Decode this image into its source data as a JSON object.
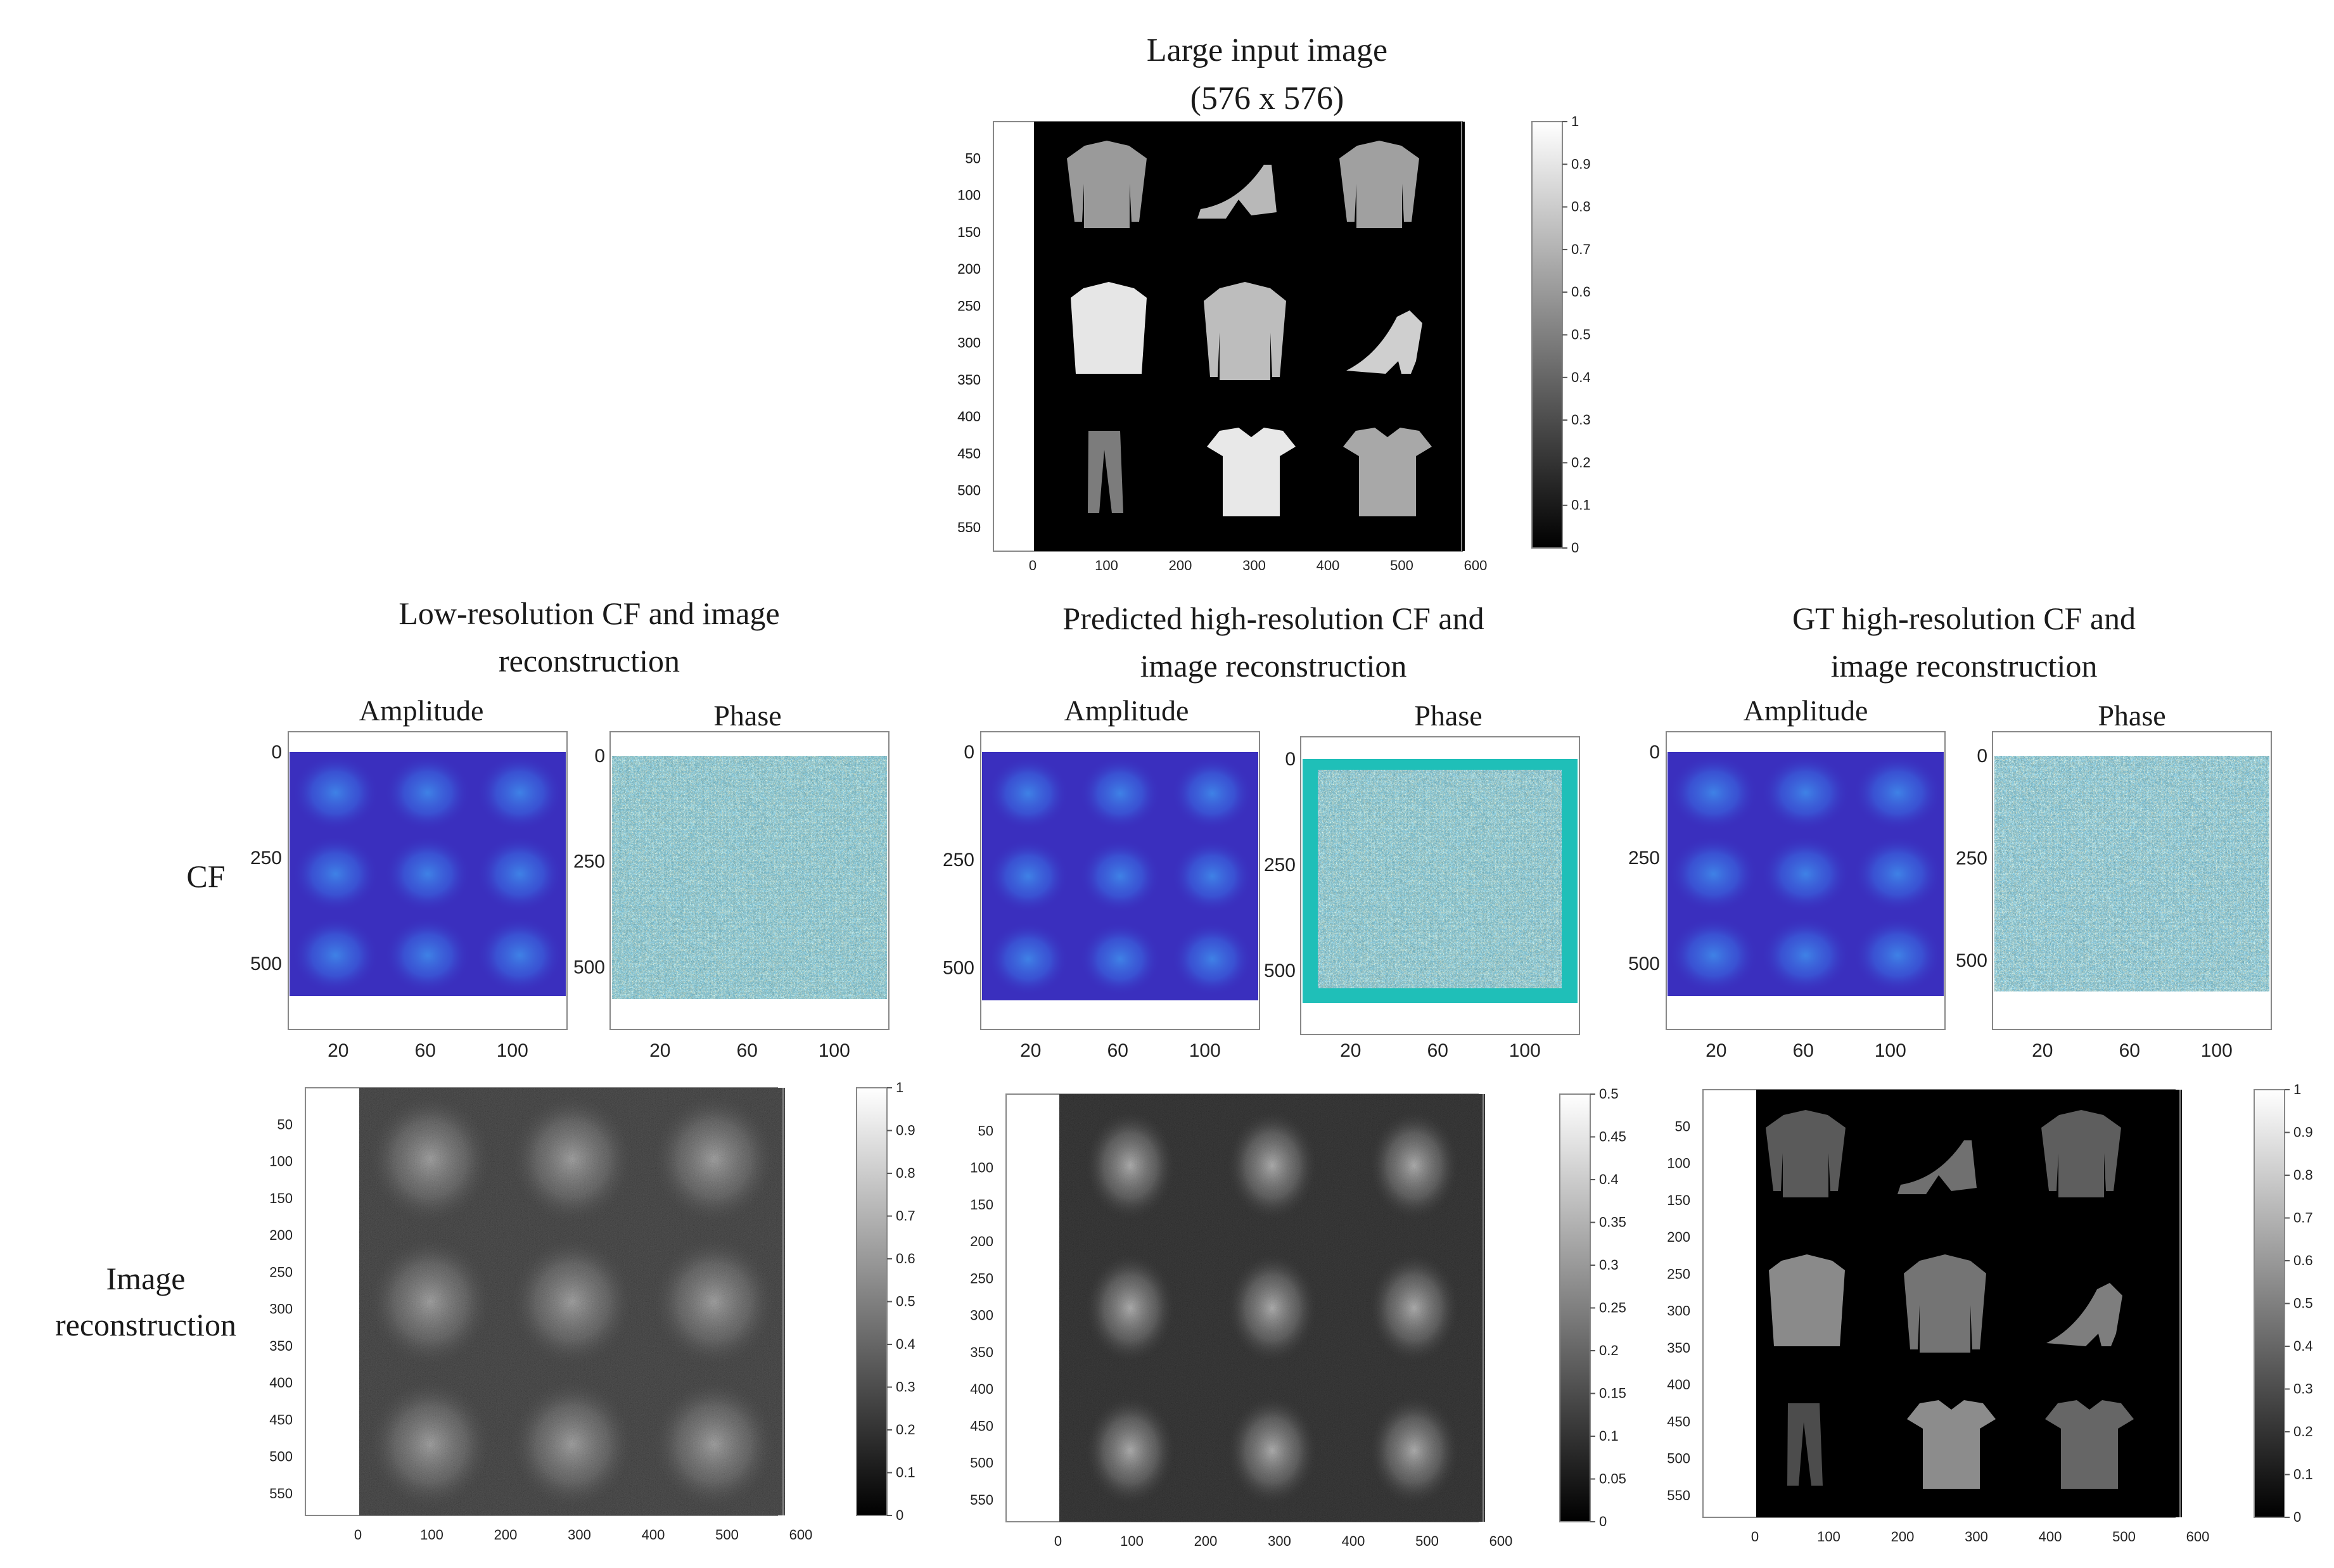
{
  "top_title": {
    "line1": "Large input image",
    "line2": "(576 x 576)"
  },
  "columns": [
    {
      "title_line1": "Low-resolution  CF and image",
      "title_line2": "reconstruction"
    },
    {
      "title_line1": "Predicted high-resolution  CF and",
      "title_line2": "image  reconstruction"
    },
    {
      "title_line1": "GT high-resolution  CF and",
      "title_line2": "image  reconstruction"
    }
  ],
  "subplot_labels": {
    "amplitude": "Amplitude",
    "phase": "Phase"
  },
  "row_labels": {
    "cf": "CF",
    "recon_line1": "Image",
    "recon_line2": "reconstruction"
  },
  "image_axis": {
    "x_ticks": [
      "0",
      "100",
      "200",
      "300",
      "400",
      "500",
      "600"
    ],
    "y_ticks": [
      "50",
      "100",
      "150",
      "200",
      "250",
      "300",
      "350",
      "400",
      "450",
      "500",
      "550"
    ]
  },
  "cf_axis": {
    "x_ticks": [
      "20",
      "60",
      "100"
    ],
    "y_ticks": [
      "0",
      "250",
      "500"
    ]
  },
  "colorbars": {
    "unit": [
      "0",
      "0.1",
      "0.2",
      "0.3",
      "0.4",
      "0.5",
      "0.6",
      "0.7",
      "0.8",
      "0.9",
      "1"
    ],
    "half": [
      "0",
      "0.05",
      "0.1",
      "0.15",
      "0.2",
      "0.25",
      "0.3",
      "0.35",
      "0.4",
      "0.45",
      "0.5"
    ]
  },
  "colors": {
    "amplitude_bg": "#3b2fbf",
    "phase_border": "#1fbfb8",
    "text": "#1a1a1a"
  }
}
